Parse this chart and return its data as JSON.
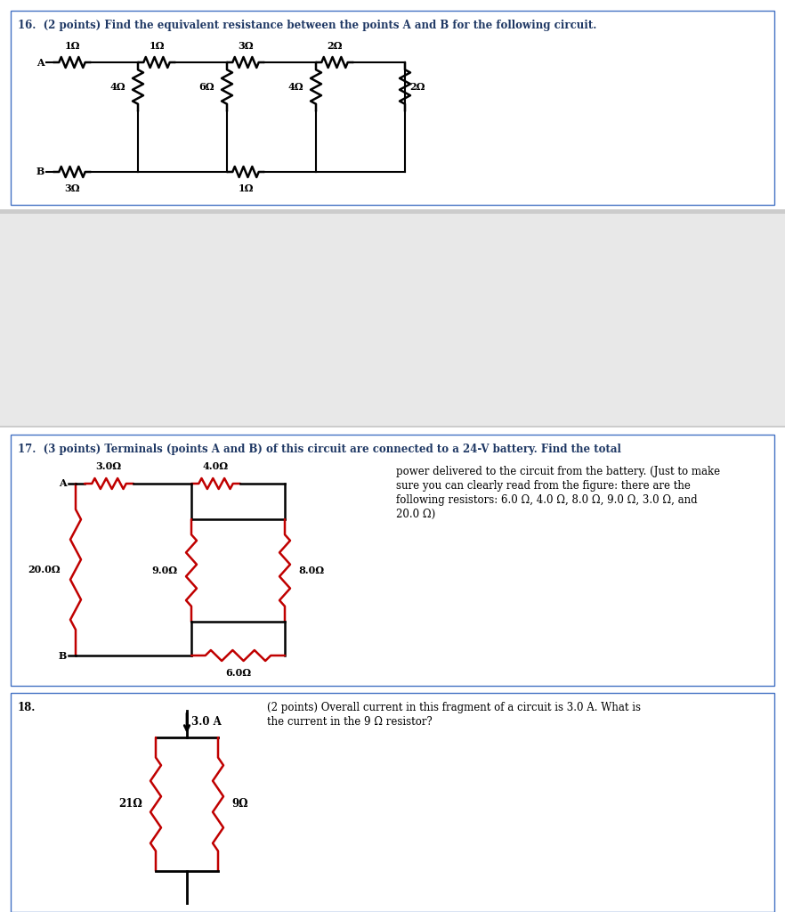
{
  "bg_color": "#ffffff",
  "border_color": "#4472c4",
  "text_color": "#000000",
  "blue_text_color": "#1f3864",
  "resistor_color_black": "#000000",
  "resistor_color_red": "#c00000",
  "fig_width": 8.82,
  "fig_height": 10.24,
  "q16_title": "16.  (2 points) Find the equivalent resistance between the points A and B for the following circuit.",
  "q17_title": "17.  (3 points) Terminals (points A and B) of this circuit are connected to a 24-V battery. Find the total",
  "q17_text2": "power delivered to the circuit from the battery. (Just to make",
  "q17_text3": "sure you can clearly read from the figure: there are the",
  "q17_text4": "following resistors: 6.0 Ω, 4.0 Ω, 8.0 Ω, 9.0 Ω, 3.0 Ω, and",
  "q17_text5": "20.0 Ω)",
  "q18_num": "18.",
  "q18_text1": "(2 points) Overall current in this fragment of a circuit is 3.0 A. What is",
  "q18_text2": "the current in the 9 Ω resistor?"
}
